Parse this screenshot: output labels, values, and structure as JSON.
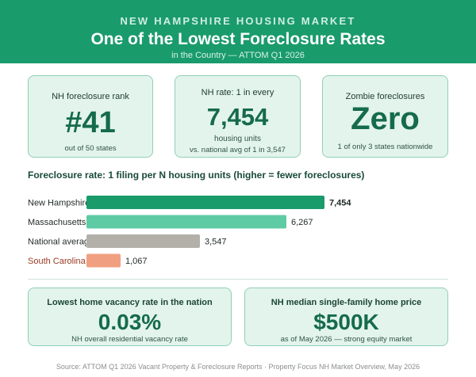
{
  "header": {
    "eyebrow": "NEW HAMPSHIRE HOUSING MARKET",
    "title": "One of the Lowest Foreclosure Rates",
    "subtitle": "in the Country — ATTOM Q1 2026"
  },
  "kpis": [
    {
      "label": "NH foreclosure rank",
      "value": "#41",
      "sub": "out of 50 states"
    },
    {
      "label": "NH rate: 1 in every",
      "value": "7,454",
      "sub": "housing units",
      "sub2": "vs. national avg of 1 in 3,547"
    },
    {
      "label": "Zombie foreclosures",
      "value": "Zero",
      "sub": "1 of only 3 states nationwide"
    }
  ],
  "chart_data": {
    "type": "bar",
    "orientation": "horizontal",
    "title": "Foreclosure rate: 1 filing per N housing units (higher = fewer foreclosures)",
    "categories": [
      "New Hampshire",
      "Massachusetts",
      "National average",
      "South Carolina"
    ],
    "values": [
      7454,
      6267,
      3547,
      1067
    ],
    "value_labels": [
      "7,454",
      "6,267",
      "3,547",
      "1,067"
    ],
    "colors": [
      "#1a9b6c",
      "#5ecba4",
      "#b3b0aa",
      "#f0a080"
    ],
    "label_colors": [
      "#1f2a25",
      "#1f2a25",
      "#1f2a25",
      "#9a3b22"
    ],
    "xlim": [
      0,
      7454
    ],
    "grid": false,
    "legend": "none"
  },
  "bottom_cards": [
    {
      "label": "Lowest home vacancy rate in the nation",
      "value": "0.03%",
      "sub": "NH overall residential vacancy rate"
    },
    {
      "label": "NH median single-family home price",
      "value": "$500K",
      "sub": "as of May 2026 — strong equity market"
    }
  ],
  "footer": "Source: ATTOM Q1 2026 Vacant Property & Foreclosure Reports · Property Focus NH Market Overview, May 2026"
}
